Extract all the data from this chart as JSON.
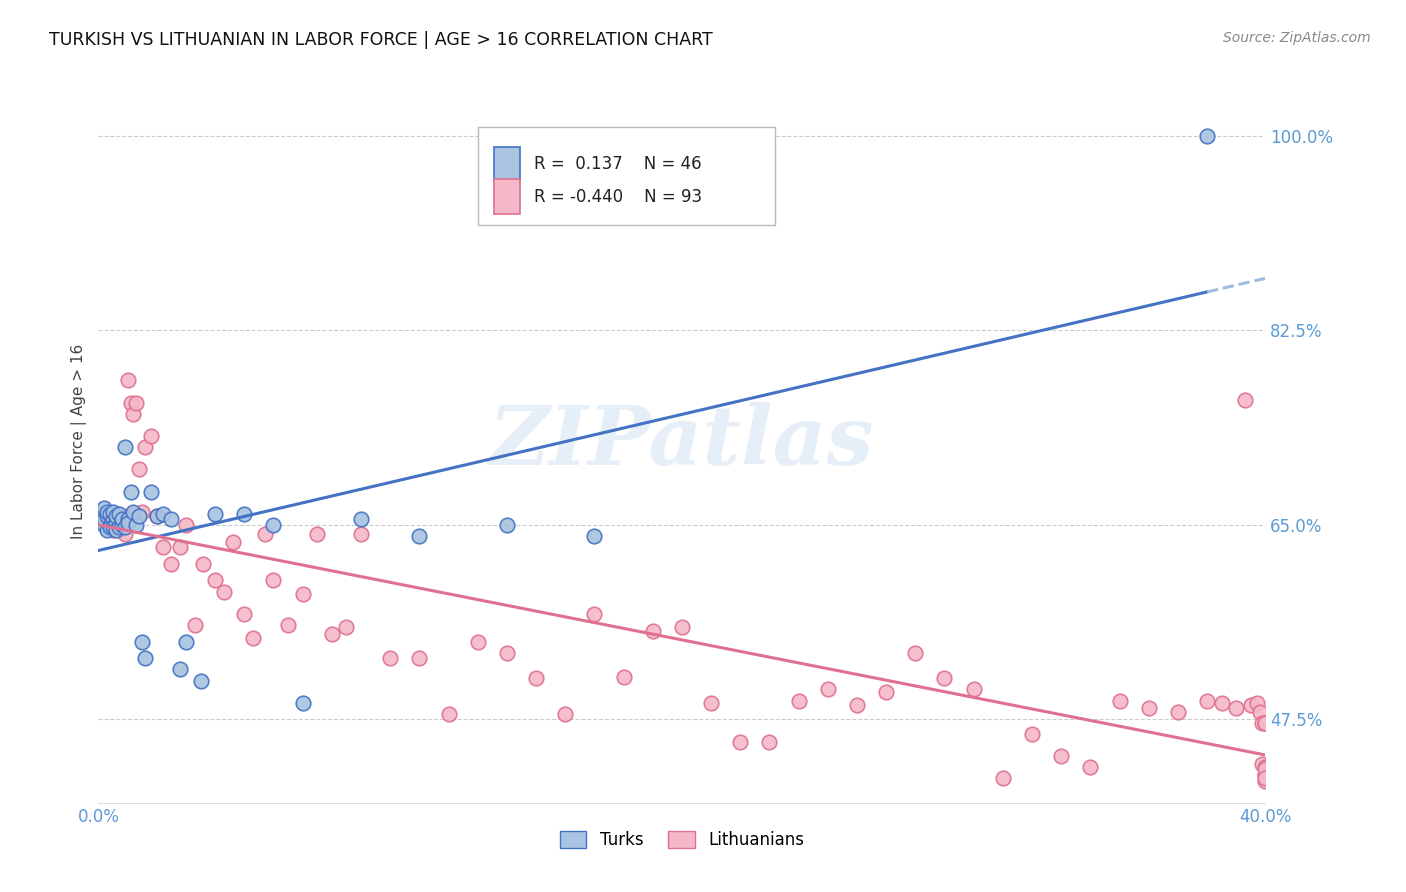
{
  "title": "TURKISH VS LITHUANIAN IN LABOR FORCE | AGE > 16 CORRELATION CHART",
  "source": "Source: ZipAtlas.com",
  "ylabel_label": "In Labor Force | Age > 16",
  "x_min": 0.0,
  "x_max": 0.4,
  "y_min": 0.4,
  "y_max": 1.05,
  "turks_R": 0.137,
  "turks_N": 46,
  "lith_R": -0.44,
  "lith_N": 93,
  "turks_color": "#a8c4e0",
  "lith_color": "#f4b8c8",
  "turks_line_color": "#4472c4",
  "lith_line_color": "#e07090",
  "turks_line_dash_color": "#a0bce0",
  "bg_color": "#ffffff",
  "grid_color": "#cccccc",
  "axis_color": "#5b9bd5",
  "watermark": "ZIPatlas",
  "turks_x": [
    0.001,
    0.002,
    0.002,
    0.002,
    0.003,
    0.003,
    0.003,
    0.004,
    0.004,
    0.004,
    0.005,
    0.005,
    0.005,
    0.006,
    0.006,
    0.006,
    0.007,
    0.007,
    0.008,
    0.008,
    0.009,
    0.009,
    0.01,
    0.01,
    0.011,
    0.012,
    0.013,
    0.014,
    0.015,
    0.016,
    0.018,
    0.02,
    0.022,
    0.025,
    0.028,
    0.03,
    0.035,
    0.04,
    0.05,
    0.06,
    0.07,
    0.09,
    0.11,
    0.14,
    0.17,
    0.38
  ],
  "turks_y": [
    0.66,
    0.65,
    0.655,
    0.665,
    0.645,
    0.658,
    0.662,
    0.65,
    0.648,
    0.66,
    0.655,
    0.648,
    0.662,
    0.652,
    0.658,
    0.645,
    0.66,
    0.648,
    0.65,
    0.655,
    0.72,
    0.648,
    0.655,
    0.652,
    0.68,
    0.662,
    0.65,
    0.658,
    0.545,
    0.53,
    0.68,
    0.658,
    0.66,
    0.655,
    0.52,
    0.545,
    0.51,
    0.66,
    0.66,
    0.65,
    0.49,
    0.655,
    0.64,
    0.65,
    0.64,
    1.0
  ],
  "lith_x": [
    0.001,
    0.002,
    0.002,
    0.003,
    0.003,
    0.004,
    0.004,
    0.005,
    0.005,
    0.006,
    0.006,
    0.007,
    0.007,
    0.008,
    0.008,
    0.009,
    0.01,
    0.01,
    0.011,
    0.012,
    0.012,
    0.013,
    0.014,
    0.015,
    0.016,
    0.018,
    0.02,
    0.022,
    0.025,
    0.028,
    0.03,
    0.033,
    0.036,
    0.04,
    0.043,
    0.046,
    0.05,
    0.053,
    0.057,
    0.06,
    0.065,
    0.07,
    0.075,
    0.08,
    0.085,
    0.09,
    0.1,
    0.11,
    0.12,
    0.13,
    0.14,
    0.15,
    0.16,
    0.17,
    0.18,
    0.19,
    0.2,
    0.21,
    0.22,
    0.23,
    0.24,
    0.25,
    0.26,
    0.27,
    0.28,
    0.29,
    0.3,
    0.31,
    0.32,
    0.33,
    0.34,
    0.35,
    0.36,
    0.37,
    0.38,
    0.385,
    0.39,
    0.393,
    0.395,
    0.397,
    0.398,
    0.399,
    0.399,
    0.4,
    0.4,
    0.4,
    0.4,
    0.4,
    0.4,
    0.4,
    0.4,
    0.4,
    0.4
  ],
  "lith_y": [
    0.66,
    0.658,
    0.655,
    0.66,
    0.652,
    0.655,
    0.648,
    0.658,
    0.645,
    0.652,
    0.648,
    0.658,
    0.645,
    0.655,
    0.648,
    0.642,
    0.78,
    0.658,
    0.76,
    0.66,
    0.75,
    0.76,
    0.7,
    0.662,
    0.72,
    0.73,
    0.658,
    0.63,
    0.615,
    0.63,
    0.65,
    0.56,
    0.615,
    0.6,
    0.59,
    0.635,
    0.57,
    0.548,
    0.642,
    0.6,
    0.56,
    0.588,
    0.642,
    0.552,
    0.558,
    0.642,
    0.53,
    0.53,
    0.48,
    0.545,
    0.535,
    0.512,
    0.48,
    0.57,
    0.513,
    0.555,
    0.558,
    0.49,
    0.455,
    0.455,
    0.492,
    0.502,
    0.488,
    0.5,
    0.535,
    0.512,
    0.502,
    0.422,
    0.462,
    0.442,
    0.432,
    0.492,
    0.485,
    0.482,
    0.492,
    0.49,
    0.485,
    0.762,
    0.488,
    0.49,
    0.482,
    0.435,
    0.472,
    0.425,
    0.432,
    0.472,
    0.382,
    0.425,
    0.42,
    0.43,
    0.472,
    0.385,
    0.422
  ]
}
